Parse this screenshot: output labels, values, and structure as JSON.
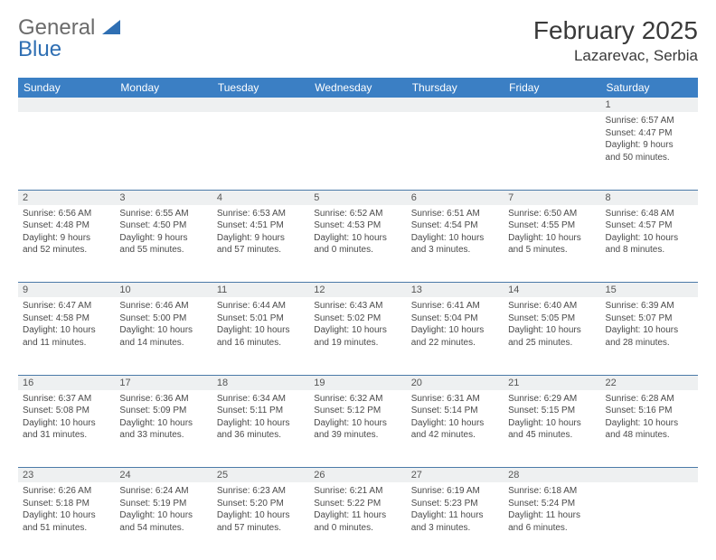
{
  "brand": {
    "part1": "General",
    "part2": "Blue"
  },
  "title": {
    "month": "February 2025",
    "location": "Lazarevac, Serbia"
  },
  "colors": {
    "header_bg": "#3b7fc4",
    "header_fg": "#ffffff",
    "daynum_bg": "#eef0f1",
    "row_border": "#4b7aa8",
    "text": "#4a4a4a",
    "brand_gray": "#6b6b6b",
    "brand_blue": "#2f6fb3"
  },
  "day_headers": [
    "Sunday",
    "Monday",
    "Tuesday",
    "Wednesday",
    "Thursday",
    "Friday",
    "Saturday"
  ],
  "weeks": [
    {
      "nums": [
        "",
        "",
        "",
        "",
        "",
        "",
        "1"
      ],
      "cells": [
        null,
        null,
        null,
        null,
        null,
        null,
        {
          "sunrise": "Sunrise: 6:57 AM",
          "sunset": "Sunset: 4:47 PM",
          "day1": "Daylight: 9 hours",
          "day2": "and 50 minutes."
        }
      ]
    },
    {
      "nums": [
        "2",
        "3",
        "4",
        "5",
        "6",
        "7",
        "8"
      ],
      "cells": [
        {
          "sunrise": "Sunrise: 6:56 AM",
          "sunset": "Sunset: 4:48 PM",
          "day1": "Daylight: 9 hours",
          "day2": "and 52 minutes."
        },
        {
          "sunrise": "Sunrise: 6:55 AM",
          "sunset": "Sunset: 4:50 PM",
          "day1": "Daylight: 9 hours",
          "day2": "and 55 minutes."
        },
        {
          "sunrise": "Sunrise: 6:53 AM",
          "sunset": "Sunset: 4:51 PM",
          "day1": "Daylight: 9 hours",
          "day2": "and 57 minutes."
        },
        {
          "sunrise": "Sunrise: 6:52 AM",
          "sunset": "Sunset: 4:53 PM",
          "day1": "Daylight: 10 hours",
          "day2": "and 0 minutes."
        },
        {
          "sunrise": "Sunrise: 6:51 AM",
          "sunset": "Sunset: 4:54 PM",
          "day1": "Daylight: 10 hours",
          "day2": "and 3 minutes."
        },
        {
          "sunrise": "Sunrise: 6:50 AM",
          "sunset": "Sunset: 4:55 PM",
          "day1": "Daylight: 10 hours",
          "day2": "and 5 minutes."
        },
        {
          "sunrise": "Sunrise: 6:48 AM",
          "sunset": "Sunset: 4:57 PM",
          "day1": "Daylight: 10 hours",
          "day2": "and 8 minutes."
        }
      ]
    },
    {
      "nums": [
        "9",
        "10",
        "11",
        "12",
        "13",
        "14",
        "15"
      ],
      "cells": [
        {
          "sunrise": "Sunrise: 6:47 AM",
          "sunset": "Sunset: 4:58 PM",
          "day1": "Daylight: 10 hours",
          "day2": "and 11 minutes."
        },
        {
          "sunrise": "Sunrise: 6:46 AM",
          "sunset": "Sunset: 5:00 PM",
          "day1": "Daylight: 10 hours",
          "day2": "and 14 minutes."
        },
        {
          "sunrise": "Sunrise: 6:44 AM",
          "sunset": "Sunset: 5:01 PM",
          "day1": "Daylight: 10 hours",
          "day2": "and 16 minutes."
        },
        {
          "sunrise": "Sunrise: 6:43 AM",
          "sunset": "Sunset: 5:02 PM",
          "day1": "Daylight: 10 hours",
          "day2": "and 19 minutes."
        },
        {
          "sunrise": "Sunrise: 6:41 AM",
          "sunset": "Sunset: 5:04 PM",
          "day1": "Daylight: 10 hours",
          "day2": "and 22 minutes."
        },
        {
          "sunrise": "Sunrise: 6:40 AM",
          "sunset": "Sunset: 5:05 PM",
          "day1": "Daylight: 10 hours",
          "day2": "and 25 minutes."
        },
        {
          "sunrise": "Sunrise: 6:39 AM",
          "sunset": "Sunset: 5:07 PM",
          "day1": "Daylight: 10 hours",
          "day2": "and 28 minutes."
        }
      ]
    },
    {
      "nums": [
        "16",
        "17",
        "18",
        "19",
        "20",
        "21",
        "22"
      ],
      "cells": [
        {
          "sunrise": "Sunrise: 6:37 AM",
          "sunset": "Sunset: 5:08 PM",
          "day1": "Daylight: 10 hours",
          "day2": "and 31 minutes."
        },
        {
          "sunrise": "Sunrise: 6:36 AM",
          "sunset": "Sunset: 5:09 PM",
          "day1": "Daylight: 10 hours",
          "day2": "and 33 minutes."
        },
        {
          "sunrise": "Sunrise: 6:34 AM",
          "sunset": "Sunset: 5:11 PM",
          "day1": "Daylight: 10 hours",
          "day2": "and 36 minutes."
        },
        {
          "sunrise": "Sunrise: 6:32 AM",
          "sunset": "Sunset: 5:12 PM",
          "day1": "Daylight: 10 hours",
          "day2": "and 39 minutes."
        },
        {
          "sunrise": "Sunrise: 6:31 AM",
          "sunset": "Sunset: 5:14 PM",
          "day1": "Daylight: 10 hours",
          "day2": "and 42 minutes."
        },
        {
          "sunrise": "Sunrise: 6:29 AM",
          "sunset": "Sunset: 5:15 PM",
          "day1": "Daylight: 10 hours",
          "day2": "and 45 minutes."
        },
        {
          "sunrise": "Sunrise: 6:28 AM",
          "sunset": "Sunset: 5:16 PM",
          "day1": "Daylight: 10 hours",
          "day2": "and 48 minutes."
        }
      ]
    },
    {
      "nums": [
        "23",
        "24",
        "25",
        "26",
        "27",
        "28",
        ""
      ],
      "cells": [
        {
          "sunrise": "Sunrise: 6:26 AM",
          "sunset": "Sunset: 5:18 PM",
          "day1": "Daylight: 10 hours",
          "day2": "and 51 minutes."
        },
        {
          "sunrise": "Sunrise: 6:24 AM",
          "sunset": "Sunset: 5:19 PM",
          "day1": "Daylight: 10 hours",
          "day2": "and 54 minutes."
        },
        {
          "sunrise": "Sunrise: 6:23 AM",
          "sunset": "Sunset: 5:20 PM",
          "day1": "Daylight: 10 hours",
          "day2": "and 57 minutes."
        },
        {
          "sunrise": "Sunrise: 6:21 AM",
          "sunset": "Sunset: 5:22 PM",
          "day1": "Daylight: 11 hours",
          "day2": "and 0 minutes."
        },
        {
          "sunrise": "Sunrise: 6:19 AM",
          "sunset": "Sunset: 5:23 PM",
          "day1": "Daylight: 11 hours",
          "day2": "and 3 minutes."
        },
        {
          "sunrise": "Sunrise: 6:18 AM",
          "sunset": "Sunset: 5:24 PM",
          "day1": "Daylight: 11 hours",
          "day2": "and 6 minutes."
        },
        null
      ]
    }
  ]
}
